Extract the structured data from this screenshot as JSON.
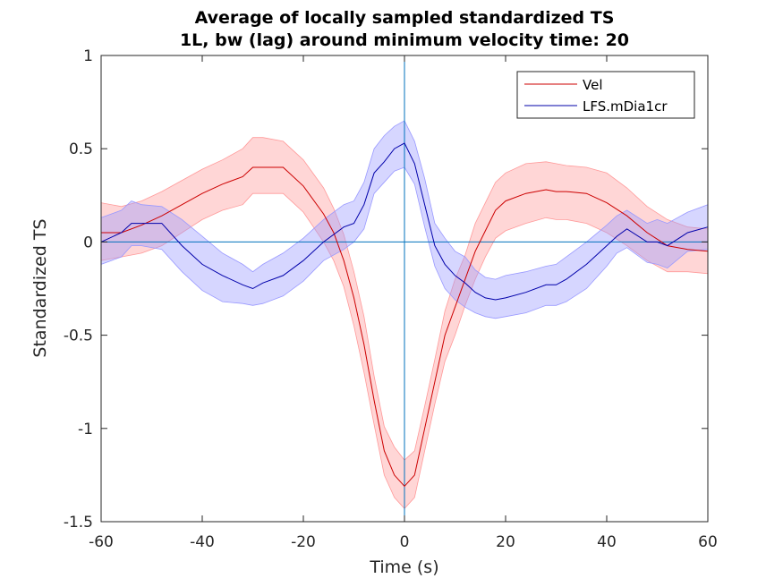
{
  "chart_data": {
    "type": "line",
    "title": [
      "Average of locally sampled standardized TS",
      "1L, bw (lag) around minimum velocity time: 20"
    ],
    "xlabel": "Time (s)",
    "ylabel": "Standardized TS",
    "xlim": [
      -60,
      60
    ],
    "ylim": [
      -1.5,
      1
    ],
    "xticks": [
      -60,
      -40,
      -20,
      0,
      20,
      40,
      60
    ],
    "yticks": [
      -1.5,
      -1,
      -0.5,
      0,
      0.5,
      1
    ],
    "xtick_labels": [
      "-60",
      "-40",
      "-20",
      "0",
      "20",
      "40",
      "60"
    ],
    "ytick_labels": [
      "-1.5",
      "-1",
      "-0.5",
      "0",
      "0.5",
      "1"
    ],
    "reference_lines": {
      "x": 0,
      "y": 0,
      "color": "#0072BD"
    },
    "legend_position": "top-right",
    "grid": false,
    "series": [
      {
        "name": "Vel",
        "color": "#cc0000",
        "band_color": "#ff9999",
        "x": [
          -60,
          -56,
          -52,
          -48,
          -44,
          -40,
          -36,
          -32,
          -30,
          -28,
          -24,
          -20,
          -16,
          -14,
          -12,
          -10,
          -8,
          -6,
          -4,
          -2,
          0,
          2,
          4,
          6,
          8,
          10,
          12,
          14,
          16,
          18,
          20,
          24,
          28,
          30,
          32,
          36,
          40,
          44,
          48,
          52,
          56,
          60
        ],
        "mean": [
          0.05,
          0.05,
          0.09,
          0.14,
          0.2,
          0.26,
          0.31,
          0.35,
          0.4,
          0.4,
          0.4,
          0.3,
          0.15,
          0.05,
          -0.1,
          -0.3,
          -0.55,
          -0.85,
          -1.12,
          -1.25,
          -1.31,
          -1.25,
          -1.0,
          -0.75,
          -0.5,
          -0.35,
          -0.2,
          -0.05,
          0.06,
          0.17,
          0.22,
          0.26,
          0.28,
          0.27,
          0.27,
          0.26,
          0.21,
          0.14,
          0.05,
          -0.02,
          -0.04,
          -0.05
        ],
        "lower": [
          -0.1,
          -0.08,
          -0.06,
          -0.02,
          0.05,
          0.12,
          0.17,
          0.2,
          0.26,
          0.26,
          0.26,
          0.16,
          0.0,
          -0.1,
          -0.24,
          -0.45,
          -0.7,
          -0.98,
          -1.25,
          -1.37,
          -1.43,
          -1.37,
          -1.12,
          -0.87,
          -0.64,
          -0.5,
          -0.34,
          -0.2,
          -0.08,
          0.02,
          0.06,
          0.1,
          0.13,
          0.12,
          0.12,
          0.1,
          0.05,
          -0.02,
          -0.1,
          -0.16,
          -0.16,
          -0.17
        ],
        "upper": [
          0.21,
          0.19,
          0.22,
          0.27,
          0.33,
          0.39,
          0.44,
          0.5,
          0.56,
          0.56,
          0.54,
          0.44,
          0.29,
          0.18,
          0.04,
          -0.16,
          -0.4,
          -0.72,
          -0.99,
          -1.1,
          -1.17,
          -1.12,
          -0.88,
          -0.63,
          -0.37,
          -0.2,
          -0.07,
          0.1,
          0.21,
          0.32,
          0.37,
          0.42,
          0.43,
          0.42,
          0.41,
          0.4,
          0.37,
          0.29,
          0.19,
          0.12,
          0.08,
          0.07
        ]
      },
      {
        "name": "LFS.mDia1cr",
        "color": "#0000aa",
        "band_color": "#9999ff",
        "x": [
          -60,
          -56,
          -54,
          -52,
          -48,
          -44,
          -40,
          -36,
          -32,
          -30,
          -28,
          -24,
          -20,
          -16,
          -12,
          -10,
          -8,
          -6,
          -4,
          -2,
          0,
          2,
          4,
          6,
          8,
          10,
          12,
          14,
          16,
          18,
          20,
          24,
          28,
          30,
          32,
          36,
          40,
          42,
          44,
          48,
          50,
          52,
          56,
          60
        ],
        "mean": [
          0.0,
          0.05,
          0.1,
          0.1,
          0.1,
          -0.02,
          -0.12,
          -0.18,
          -0.23,
          -0.25,
          -0.22,
          -0.18,
          -0.1,
          0.0,
          0.08,
          0.1,
          0.2,
          0.37,
          0.43,
          0.5,
          0.53,
          0.42,
          0.2,
          -0.02,
          -0.12,
          -0.18,
          -0.22,
          -0.27,
          -0.3,
          -0.31,
          -0.3,
          -0.27,
          -0.23,
          -0.23,
          -0.2,
          -0.12,
          -0.02,
          0.03,
          0.07,
          0.0,
          0.0,
          -0.02,
          0.05,
          0.08
        ],
        "lower": [
          -0.12,
          -0.08,
          -0.02,
          -0.02,
          -0.04,
          -0.16,
          -0.26,
          -0.32,
          -0.33,
          -0.34,
          -0.33,
          -0.29,
          -0.21,
          -0.1,
          -0.04,
          0.0,
          0.07,
          0.26,
          0.32,
          0.38,
          0.4,
          0.31,
          0.08,
          -0.13,
          -0.25,
          -0.31,
          -0.35,
          -0.38,
          -0.4,
          -0.41,
          -0.4,
          -0.38,
          -0.34,
          -0.34,
          -0.32,
          -0.25,
          -0.13,
          -0.06,
          -0.03,
          -0.11,
          -0.12,
          -0.14,
          -0.05,
          -0.04
        ],
        "upper": [
          0.13,
          0.17,
          0.22,
          0.2,
          0.19,
          0.12,
          0.03,
          -0.06,
          -0.12,
          -0.16,
          -0.12,
          -0.06,
          0.02,
          0.12,
          0.2,
          0.22,
          0.32,
          0.5,
          0.57,
          0.62,
          0.65,
          0.54,
          0.34,
          0.1,
          0.02,
          -0.05,
          -0.08,
          -0.15,
          -0.19,
          -0.2,
          -0.18,
          -0.16,
          -0.13,
          -0.12,
          -0.08,
          0.0,
          0.09,
          0.14,
          0.17,
          0.1,
          0.12,
          0.1,
          0.16,
          0.2
        ]
      }
    ]
  }
}
